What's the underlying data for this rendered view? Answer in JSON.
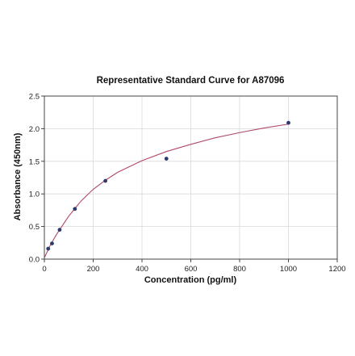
{
  "chart_data": {
    "type": "scatter",
    "title": "Representative Standard Curve for A87096",
    "xlabel": "Concentration (pg/ml)",
    "ylabel": "Absorbance (450nm)",
    "xlim": [
      0,
      1200
    ],
    "ylim": [
      0,
      2.5
    ],
    "x_ticks": [
      "0",
      "200",
      "400",
      "600",
      "800",
      "1000",
      "1200"
    ],
    "y_ticks": [
      "0.0",
      "0.5",
      "1.0",
      "1.5",
      "2.0",
      "2.5"
    ],
    "grid": true,
    "series": [
      {
        "points": [
          {
            "x": 15.6,
            "y": 0.16
          },
          {
            "x": 31.25,
            "y": 0.24
          },
          {
            "x": 62.5,
            "y": 0.45
          },
          {
            "x": 125,
            "y": 0.77
          },
          {
            "x": 250,
            "y": 1.2
          },
          {
            "x": 500,
            "y": 1.54
          },
          {
            "x": 1000,
            "y": 2.09
          }
        ],
        "color": "#2d3b6b"
      }
    ],
    "fit_curve": {
      "x": [
        0,
        25,
        50,
        75,
        100,
        150,
        200,
        250,
        300,
        400,
        500,
        600,
        700,
        800,
        900,
        1000
      ],
      "y": [
        0.02,
        0.22,
        0.38,
        0.52,
        0.66,
        0.89,
        1.07,
        1.21,
        1.33,
        1.51,
        1.65,
        1.76,
        1.86,
        1.94,
        2.01,
        2.07
      ],
      "color": "#b04a68"
    }
  }
}
